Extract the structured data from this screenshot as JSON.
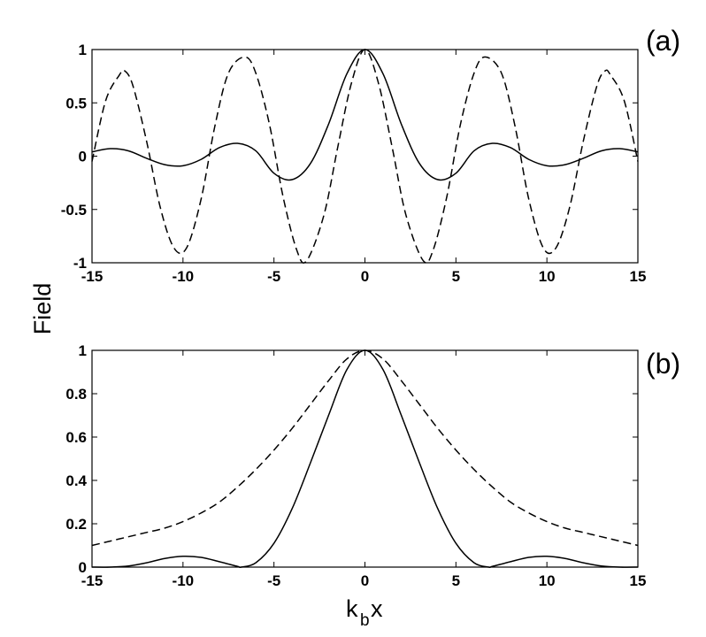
{
  "figure": {
    "ylabel": "Field",
    "xlabel_main": "k",
    "xlabel_sub": "b",
    "xlabel_tail": "x"
  },
  "chart_data": [
    {
      "type": "line",
      "panel_label": "(a)",
      "xlim": [
        -15,
        15
      ],
      "ylim": [
        -1,
        1
      ],
      "x_ticks": [
        -15,
        -10,
        -5,
        0,
        5,
        10,
        15
      ],
      "y_ticks": [
        -1,
        -0.5,
        0,
        0.5,
        1
      ],
      "y_tick_labels": [
        "-1",
        "-0.5",
        "0",
        "0.5",
        "1"
      ],
      "grid": false,
      "series": [
        {
          "style": "solid",
          "x": [
            -15,
            -14,
            -13,
            -12,
            -11,
            -10,
            -9,
            -8,
            -7,
            -6,
            -5,
            -4,
            -3,
            -2,
            -1,
            0,
            1,
            2,
            3,
            4,
            5,
            6,
            7,
            8,
            9,
            10,
            11,
            12,
            13,
            14,
            15
          ],
          "values": [
            0.04,
            0.07,
            0.05,
            -0.02,
            -0.08,
            -0.09,
            -0.03,
            0.08,
            0.12,
            0.05,
            -0.16,
            -0.22,
            -0.07,
            0.3,
            0.77,
            1.0,
            0.77,
            0.3,
            -0.07,
            -0.22,
            -0.16,
            0.05,
            0.12,
            0.08,
            -0.03,
            -0.09,
            -0.08,
            -0.02,
            0.05,
            0.07,
            0.04
          ]
        },
        {
          "style": "dashed",
          "x": [
            -15,
            -14.25,
            -13.5,
            -13.2,
            -12.75,
            -12,
            -11.25,
            -10.5,
            -9.8,
            -9,
            -8.25,
            -7.5,
            -6.6,
            -6,
            -5.25,
            -4.5,
            -3.75,
            -3.2,
            -2.25,
            -1.5,
            -0.75,
            0,
            0.75,
            1.5,
            2.25,
            3.2,
            3.75,
            4.5,
            5.25,
            6,
            6.6,
            7.5,
            8.25,
            9,
            9.8,
            10.5,
            11.25,
            12,
            12.75,
            13.2,
            13.5,
            14.25,
            15
          ],
          "values": [
            -0.05,
            0.52,
            0.76,
            0.8,
            0.66,
            0.14,
            -0.48,
            -0.86,
            -0.86,
            -0.4,
            0.28,
            0.78,
            0.93,
            0.78,
            0.3,
            -0.38,
            -0.88,
            -0.98,
            -0.55,
            0.08,
            0.68,
            1.0,
            0.68,
            0.08,
            -0.55,
            -0.98,
            -0.88,
            -0.38,
            0.3,
            0.78,
            0.93,
            0.78,
            0.28,
            -0.4,
            -0.86,
            -0.86,
            -0.48,
            0.14,
            0.66,
            0.8,
            0.76,
            0.52,
            -0.05
          ]
        }
      ]
    },
    {
      "type": "line",
      "panel_label": "(b)",
      "xlim": [
        -15,
        15
      ],
      "ylim": [
        0,
        1
      ],
      "x_ticks": [
        -15,
        -10,
        -5,
        0,
        5,
        10,
        15
      ],
      "y_ticks": [
        0,
        0.2,
        0.4,
        0.6,
        0.8,
        1
      ],
      "y_tick_labels": [
        "0",
        "0.2",
        "0.4",
        "0.6",
        "0.8",
        "1"
      ],
      "grid": false,
      "series": [
        {
          "style": "solid",
          "x": [
            -15,
            -14,
            -13,
            -12,
            -11,
            -10,
            -9,
            -8,
            -7,
            -6.8,
            -6,
            -5,
            -4,
            -3,
            -2,
            -1,
            0,
            1,
            2,
            3,
            4,
            5,
            6,
            6.8,
            7,
            8,
            9,
            10,
            11,
            12,
            13,
            14,
            15
          ],
          "values": [
            0.0,
            0.0,
            0.005,
            0.02,
            0.04,
            0.05,
            0.045,
            0.025,
            0.003,
            0.0,
            0.02,
            0.11,
            0.27,
            0.48,
            0.7,
            0.91,
            1.0,
            0.91,
            0.7,
            0.48,
            0.27,
            0.11,
            0.02,
            0.0,
            0.003,
            0.025,
            0.045,
            0.05,
            0.04,
            0.02,
            0.005,
            0.0,
            0.0
          ]
        },
        {
          "style": "dashed",
          "x": [
            -15,
            -14,
            -13,
            -12,
            -11,
            -10,
            -9,
            -8,
            -7,
            -6,
            -5,
            -4,
            -3,
            -2,
            -1,
            0,
            1,
            2,
            3,
            4,
            5,
            6,
            7,
            8,
            9,
            10,
            11,
            12,
            13,
            14,
            15
          ],
          "values": [
            0.1,
            0.12,
            0.14,
            0.16,
            0.18,
            0.21,
            0.25,
            0.3,
            0.37,
            0.45,
            0.54,
            0.64,
            0.75,
            0.86,
            0.96,
            1.0,
            0.96,
            0.86,
            0.75,
            0.64,
            0.54,
            0.45,
            0.37,
            0.3,
            0.25,
            0.21,
            0.18,
            0.16,
            0.14,
            0.12,
            0.1
          ]
        }
      ]
    }
  ]
}
